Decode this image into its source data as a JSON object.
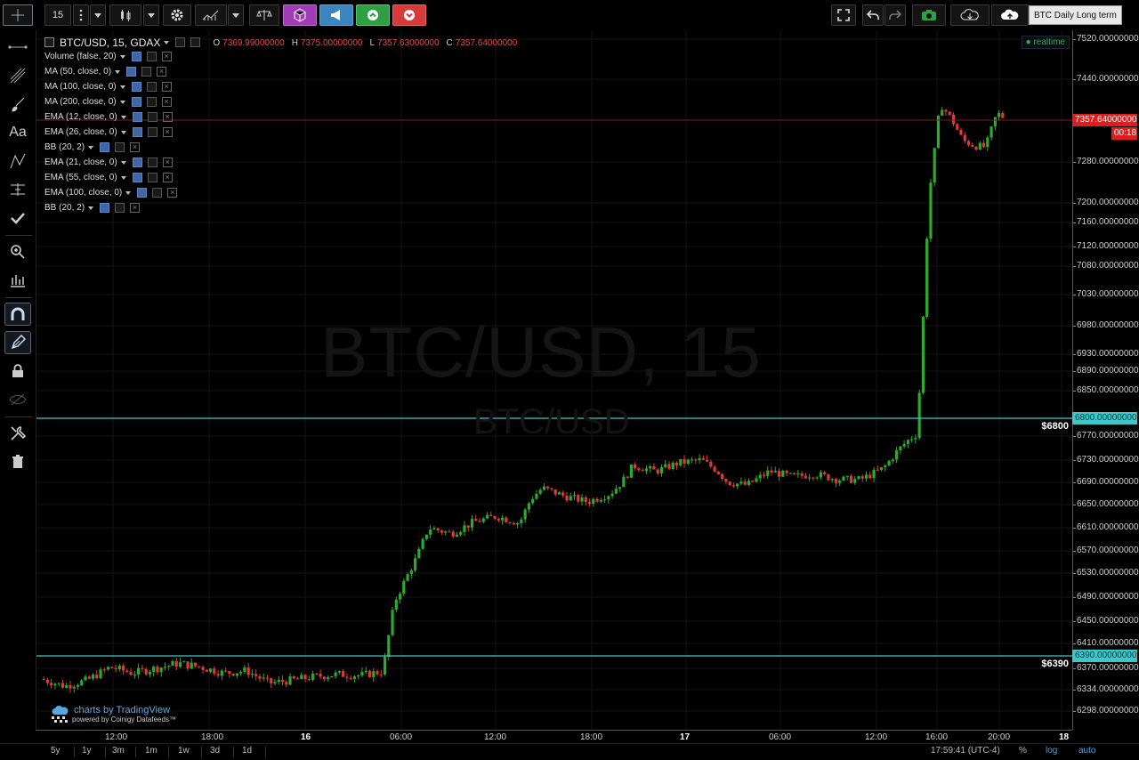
{
  "toolbar": {
    "interval": "15",
    "compare_label": "BTC Daily Long term",
    "icons": [
      "crosshair-icon",
      "menu-dots-icon",
      "chevron-down-icon",
      "candles-icon",
      "gear-icon",
      "indicators-icon",
      "scale-icon",
      "cube-icon",
      "megaphone-icon",
      "up-arrow-icon",
      "down-arrow-icon",
      "fullscreen-icon",
      "undo-icon",
      "redo-icon",
      "camera-icon",
      "cloud-load-icon",
      "cloud-save-icon"
    ],
    "colors": {
      "green": "#2ea043",
      "red": "#d63a3a",
      "purple": "#a13bb6",
      "blue": "#3b84bd"
    }
  },
  "legend": {
    "symbol": "BTC/USD, 15, GDAX",
    "ohlc": [
      {
        "label": "O",
        "value": "7369.99000000"
      },
      {
        "label": "H",
        "value": "7375.00000000"
      },
      {
        "label": "L",
        "value": "7357.63000000"
      },
      {
        "label": "C",
        "value": "7357.64000000"
      }
    ],
    "indicators": [
      "Volume (false, 20)",
      "MA (50, close, 0)",
      "MA (100, close, 0)",
      "MA (200, close, 0)",
      "EMA (12, close, 0)",
      "EMA (26, close, 0)",
      "BB (20, 2)",
      "EMA (21, close, 0)",
      "EMA (55, close, 0)",
      "EMA (100, close, 0)",
      "BB (20, 2)"
    ],
    "realtime": "realtime"
  },
  "watermark": {
    "main": "BTC/USD, 15",
    "sub": "BTC/USD"
  },
  "price_axis": {
    "ticks": [
      "7520.00000000",
      "7440.00000000",
      "7357.64000000",
      "7280.00000000",
      "7200.00000000",
      "7160.00000000",
      "7120.00000000",
      "7080.00000000",
      "7030.00000000",
      "6980.00000000",
      "6930.00000000",
      "6890.00000000",
      "6850.00000000",
      "6800.00000000",
      "6770.00000000",
      "6730.00000000",
      "6690.00000000",
      "6650.00000000",
      "6610.00000000",
      "6570.00000000",
      "6530.00000000",
      "6490.00000000",
      "6450.00000000",
      "6410.00000000",
      "6390.00000000",
      "6370.00000000",
      "6334.00000000",
      "6298.00000000"
    ],
    "last_price": "7357.64000000",
    "countdown": "00:18"
  },
  "hlines": [
    {
      "label": "$6800",
      "price": 6800,
      "axis_label": "6800.00000000",
      "color": "#3cc8c8"
    },
    {
      "label": "$6390",
      "price": 6390,
      "axis_label": "6390.00000000",
      "color": "#3cc8c8"
    }
  ],
  "time_axis": [
    {
      "label": "12:00",
      "major": false
    },
    {
      "label": "18:00",
      "major": false
    },
    {
      "label": "16",
      "major": true
    },
    {
      "label": "06:00",
      "major": false
    },
    {
      "label": "12:00",
      "major": false
    },
    {
      "label": "18:00",
      "major": false
    },
    {
      "label": "17",
      "major": true
    },
    {
      "label": "06:00",
      "major": false
    },
    {
      "label": "12:00",
      "major": false
    },
    {
      "label": "16:00",
      "major": false
    },
    {
      "label": "20:00",
      "major": false
    },
    {
      "label": "18",
      "major": true
    }
  ],
  "bottom": {
    "ranges": [
      "5y",
      "1y",
      "3m",
      "1m",
      "1w",
      "3d",
      "1d"
    ],
    "clock": "17:59:41 (UTC-4)",
    "percent": "%",
    "log": "log",
    "auto": "auto"
  },
  "branding": {
    "main": "charts by TradingView",
    "sub": "powered by Coinigy Datafeeds™"
  },
  "chart_data": {
    "type": "candlestick",
    "title": "BTC/USD, 15, GDAX",
    "up_color": "#2ea82e",
    "down_color": "#d93b3b",
    "approx_close_path": [
      [
        0,
        6352
      ],
      [
        12,
        6340
      ],
      [
        24,
        6350
      ],
      [
        36,
        6372
      ],
      [
        48,
        6362
      ],
      [
        60,
        6370
      ],
      [
        72,
        6378
      ],
      [
        84,
        6372
      ],
      [
        96,
        6362
      ],
      [
        108,
        6366
      ],
      [
        120,
        6345
      ],
      [
        132,
        6350
      ],
      [
        144,
        6356
      ],
      [
        156,
        6360
      ],
      [
        168,
        6358
      ],
      [
        180,
        6365
      ],
      [
        186,
        6482
      ],
      [
        192,
        6520
      ],
      [
        198,
        6560
      ],
      [
        204,
        6610
      ],
      [
        216,
        6600
      ],
      [
        228,
        6620
      ],
      [
        240,
        6630
      ],
      [
        252,
        6618
      ],
      [
        258,
        6660
      ],
      [
        264,
        6680
      ],
      [
        276,
        6665
      ],
      [
        288,
        6655
      ],
      [
        300,
        6670
      ],
      [
        306,
        6690
      ],
      [
        312,
        6720
      ],
      [
        324,
        6710
      ],
      [
        336,
        6725
      ],
      [
        348,
        6730
      ],
      [
        356,
        6712
      ],
      [
        362,
        6690
      ],
      [
        372,
        6685
      ],
      [
        384,
        6710
      ],
      [
        396,
        6700
      ],
      [
        408,
        6705
      ],
      [
        420,
        6695
      ],
      [
        432,
        6695
      ],
      [
        444,
        6715
      ],
      [
        450,
        6740
      ],
      [
        456,
        6760
      ],
      [
        462,
        6775
      ],
      [
        468,
        7210
      ],
      [
        474,
        7390
      ],
      [
        480,
        7360
      ],
      [
        486,
        7320
      ],
      [
        492,
        7310
      ],
      [
        498,
        7308
      ],
      [
        504,
        7372
      ],
      [
        508,
        7362
      ]
    ],
    "ylim": [
      6298,
      7520
    ]
  }
}
